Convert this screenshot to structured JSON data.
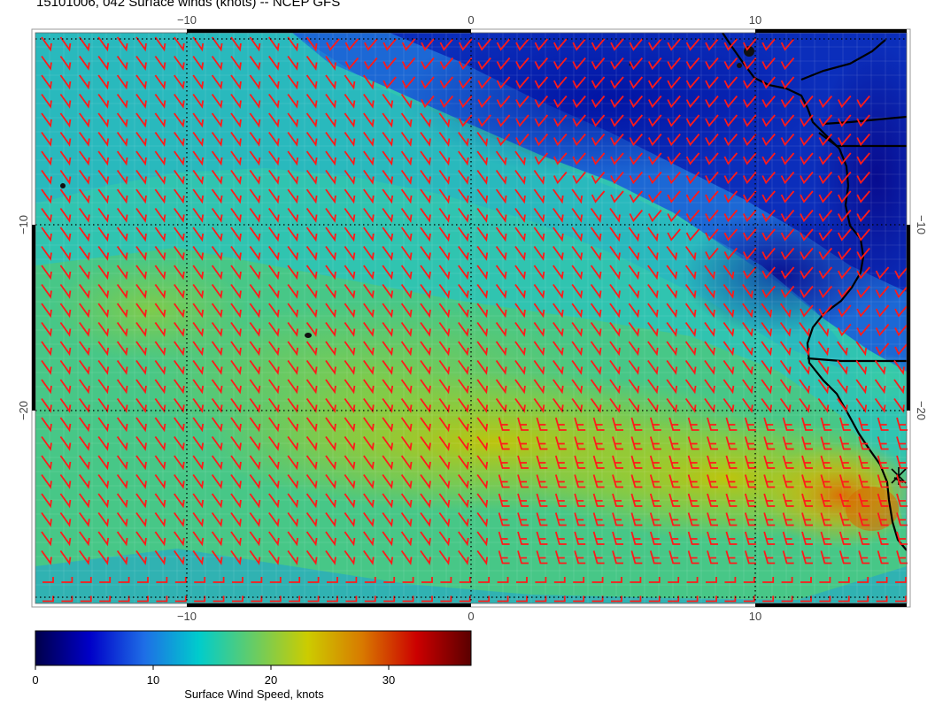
{
  "title": "15101006, 042 Surface winds (knots) -- NCEP GFS",
  "map": {
    "x_ticks": [
      "−10",
      "0",
      "10"
    ],
    "y_ticks": [
      "−10",
      "−20"
    ],
    "grid": "dotted",
    "coastline_color": "#000000",
    "barb_color": "#ff1a1a"
  },
  "colorbar": {
    "label": "Surface Wind Speed, knots",
    "ticks": [
      "0",
      "10",
      "20",
      "30"
    ],
    "range": [
      0,
      37
    ],
    "colors": [
      "#00004a",
      "#0000c8",
      "#1e6ee6",
      "#00cccc",
      "#66cc66",
      "#cccc00",
      "#d87a00",
      "#cc0000",
      "#5a0000"
    ]
  }
}
